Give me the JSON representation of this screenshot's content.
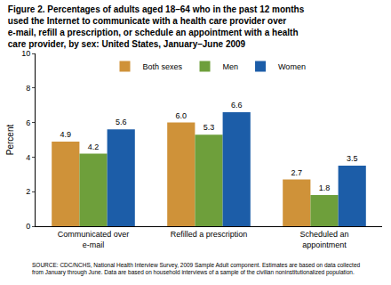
{
  "chart_data": {
    "type": "bar",
    "title": "Figure 2. Percentages of adults aged 18–64 who in the past 12 months\nused the Internet to communicate with a health care provider over\ne-mail, refill a prescription, or schedule an appointment with a health\ncare provider, by sex: United States, January–June 2009",
    "y_label": "Percent",
    "categories": [
      "Communicated over\ne-mail",
      "Refilled a prescription",
      "Scheduled an\nappointment"
    ],
    "series": [
      {
        "name": "Both sexes",
        "color": "#CF9239",
        "values": [
          4.9,
          6.0,
          2.7
        ],
        "value_labels": [
          "4.9",
          "6.0",
          "2.7"
        ]
      },
      {
        "name": "Men",
        "color": "#6E9F3B",
        "values": [
          4.2,
          5.3,
          1.8
        ],
        "value_labels": [
          "4.2",
          "5.3",
          "1.8"
        ]
      },
      {
        "name": "Women",
        "color": "#1C5DA8",
        "values": [
          5.6,
          6.6,
          3.5
        ],
        "value_labels": [
          "5.6",
          "6.6",
          "3.5"
        ]
      }
    ],
    "ylim": [
      0,
      10
    ],
    "yticks": [
      0,
      2,
      4,
      6,
      8,
      10
    ],
    "grid": false,
    "legend": "top",
    "data_labels": true,
    "note": "SOURCE: CDC/NCHS, National Health Interview Survey, 2009 Sample Adult component. Estimates are based on data collected\nfrom January through June. Data are based on household interviews of a sample of the civilian noninstitutionalized population."
  }
}
